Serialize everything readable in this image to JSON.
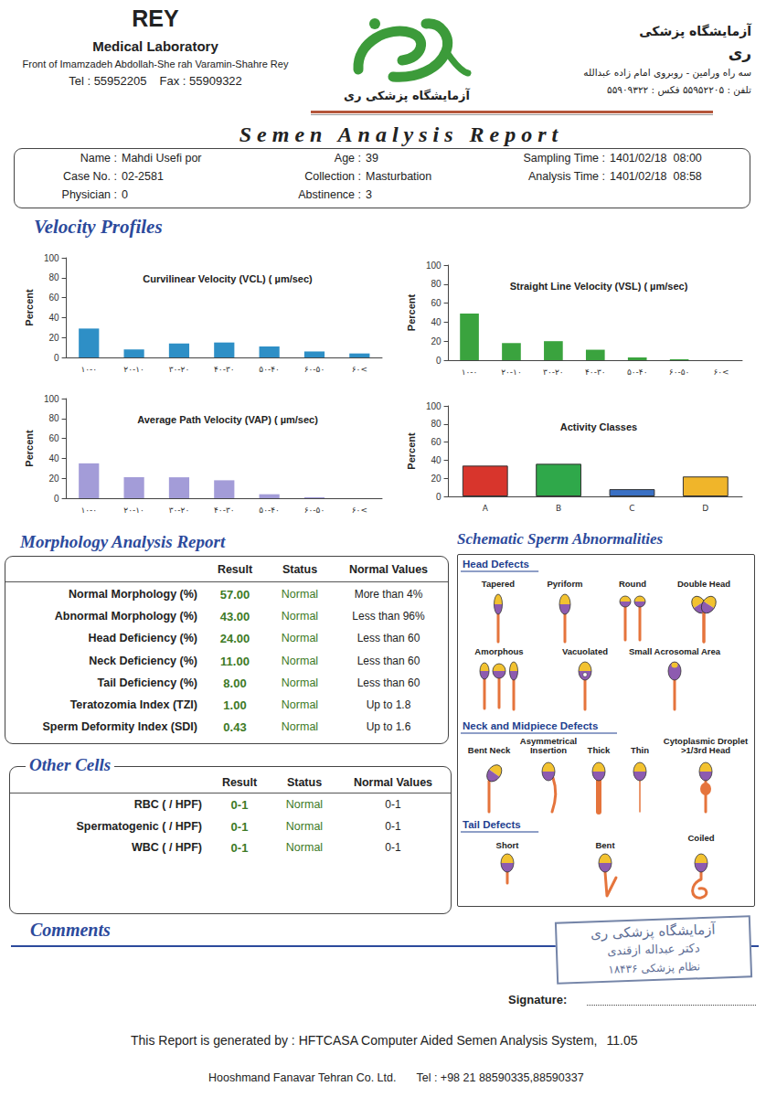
{
  "header": {
    "lab_name": "REY",
    "lab_subtitle": "Medical Laboratory",
    "address": "Front of Imamzadeh Abdollah-She rah Varamin-Shahre Rey",
    "tel": "Tel : 55952205",
    "fax": "Fax : 55909322",
    "logo_caption": "آزمایشگاه پزشکی ری",
    "fa_title": "آزمایشگاه پزشکی",
    "fa_name": "ری",
    "fa_address": "سه راه ورامین - روبروی امام زاده عبدالله",
    "fa_phone": "تلفن : ۵۵۹۵۲۲۰۵  فکس : ۵۵۹۰۹۳۲۲"
  },
  "title": "Semen Analysis Report",
  "patient": {
    "columns": [
      [
        {
          "label": "Name :",
          "value": "Mahdi Usefi por"
        },
        {
          "label": "Case No. :",
          "value": "02-2581"
        },
        {
          "label": "Physician :",
          "value": "0"
        }
      ],
      [
        {
          "label": "Age :",
          "value": "39"
        },
        {
          "label": "Collection :",
          "value": "Masturbation"
        },
        {
          "label": "Abstinence :",
          "value": "3"
        }
      ],
      [
        {
          "label": "Sampling Time :",
          "value": "1401/02/18  08:00"
        },
        {
          "label": "Analysis Time :",
          "value": "1401/02/18  08:58"
        }
      ]
    ]
  },
  "velocity_title": "Velocity Profiles",
  "chart_data": [
    {
      "type": "bar",
      "title": "Curvilinear Velocity (VCL) ( µm/sec)",
      "y_label": "Percent",
      "categories": [
        "۱۰-۰",
        "۲۰-۱۰",
        "۳۰-۲۰",
        "۴۰-۳۰",
        "۵۰-۴۰",
        "۶۰-۵۰",
        "۶۰<"
      ],
      "values": [
        29,
        8,
        14,
        15,
        11,
        6,
        4
      ],
      "color": "#2e8fc6",
      "ylim": [
        0,
        100
      ],
      "yticks": [
        0,
        20,
        40,
        60,
        80,
        100
      ],
      "grid": false
    },
    {
      "type": "bar",
      "title": "Straight Line Velocity (VSL) ( µm/sec)",
      "y_label": "Percent",
      "categories": [
        "۱۰-۰",
        "۲۰-۱۰",
        "۳۰-۲۰",
        "۴۰-۳۰",
        "۵۰-۴۰",
        "۶۰-۵۰",
        "۶۰<"
      ],
      "values": [
        49,
        18,
        20,
        11,
        3,
        1,
        0
      ],
      "color": "#3aa33e",
      "ylim": [
        0,
        100
      ],
      "yticks": [
        0,
        20,
        40,
        60,
        80,
        100
      ],
      "grid": false
    },
    {
      "type": "bar",
      "title": "Average Path Velocity (VAP) ( µm/sec)",
      "y_label": "Percent",
      "categories": [
        "۱۰-۰",
        "۲۰-۱۰",
        "۳۰-۲۰",
        "۴۰-۳۰",
        "۵۰-۴۰",
        "۶۰-۵۰",
        "۶۰<"
      ],
      "values": [
        35,
        21,
        21,
        18,
        4,
        1,
        0
      ],
      "color": "#a39cd8",
      "ylim": [
        0,
        100
      ],
      "yticks": [
        0,
        20,
        40,
        60,
        80,
        100
      ],
      "grid": false
    },
    {
      "type": "bar",
      "title": "Activity Classes",
      "y_label": "Percent",
      "categories": [
        "A",
        "B",
        "C",
        "D"
      ],
      "values": [
        34,
        36,
        8,
        22
      ],
      "colors": [
        "#d8352c",
        "#2fa84a",
        "#3a70c4",
        "#f0b52a"
      ],
      "ylim": [
        0,
        100
      ],
      "yticks": [
        0,
        20,
        40,
        60,
        80,
        100
      ],
      "grid": false
    }
  ],
  "morphology": {
    "title": "Morphology Analysis Report",
    "columns": [
      "Result",
      "Status",
      "Normal Values"
    ],
    "rows": [
      [
        "Normal Morphology (%)",
        "57.00",
        "Normal",
        "More than 4%"
      ],
      [
        "Abnormal Morphology (%)",
        "43.00",
        "Normal",
        "Less than 96%"
      ],
      [
        "Head Deficiency (%)",
        "24.00",
        "Normal",
        "Less than 60"
      ],
      [
        "Neck Deficiency (%)",
        "11.00",
        "Normal",
        "Less than 60"
      ],
      [
        "Tail Deficiency (%)",
        "8.00",
        "Normal",
        "Less than 60"
      ],
      [
        "Teratozomia Index (TZI)",
        "1.00",
        "Normal",
        "Up to 1.8"
      ],
      [
        "Sperm Deformity Index (SDI)",
        "0.43",
        "Normal",
        "Up to 1.6"
      ]
    ]
  },
  "other_cells": {
    "title": "Other Cells",
    "columns": [
      "Result",
      "Status",
      "Normal Values"
    ],
    "rows": [
      [
        "RBC ( / HPF)",
        "0-1",
        "Normal",
        "0-1"
      ],
      [
        "Spermatogenic ( / HPF)",
        "0-1",
        "Normal",
        "0-1"
      ],
      [
        "WBC ( / HPF)",
        "0-1",
        "Normal",
        "0-1"
      ]
    ]
  },
  "schematic": {
    "title": "Schematic Sperm Abnormalities",
    "sections": [
      {
        "title": "Head Defects",
        "items": [
          "Tapered",
          "Pyriform",
          "Round",
          "Double Head",
          "Amorphous",
          "Vacuolated",
          "Small Acrosomal Area"
        ]
      },
      {
        "title": "Neck and Midpiece Defects",
        "items": [
          "Bent Neck",
          "Asymmetrical Insertion",
          "Thick",
          "Thin",
          "Cytoplasmic Droplet >1/3rd Head"
        ]
      },
      {
        "title": "Tail Defects",
        "items": [
          "Short",
          "Bent",
          "Coiled"
        ]
      }
    ]
  },
  "comments_title": "Comments",
  "stamp": [
    "آزمایشگاه پزشکی ری",
    "دکتر عبداله ازقندی",
    "نظام پزشکی ۱۸۴۳۶"
  ],
  "signature": "Signature:",
  "footer": {
    "line": "This Report is generated by : HFTCASA Computer Aided Semen Analysis System,",
    "version": "11.05",
    "company": "Hooshmand Fanavar Tehran Co. Ltd.",
    "tel": "Tel : +98 21 88590335,88590337"
  }
}
